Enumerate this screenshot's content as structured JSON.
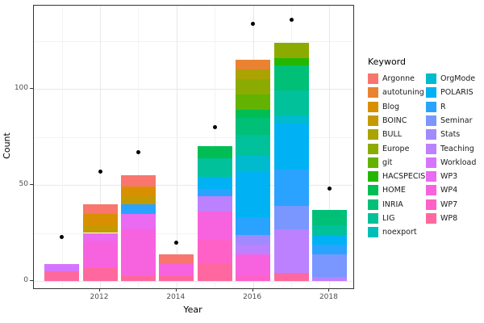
{
  "style": {
    "background": "#FFFFFF",
    "axis_color": "#333333",
    "grid_major": "#E8E8E8",
    "grid_minor": "#F3F3F3",
    "tick_label_color": "#4D4D4D",
    "point_color": "#000000"
  },
  "chart_data": {
    "type": "bar",
    "stacked": true,
    "has_point_overlay": true,
    "title": "",
    "xlabel": "Year",
    "ylabel": "Count",
    "legend_title": "Keyword",
    "legend_position": "right",
    "grid": true,
    "ylim": [
      0,
      143
    ],
    "ytick_values": [
      0,
      50,
      100
    ],
    "ytick_minor_values": [
      25,
      75,
      125
    ],
    "xtick_values": [
      2012,
      2014,
      2016,
      2018
    ],
    "years": [
      2011,
      2012,
      2013,
      2014,
      2015,
      2016,
      2017,
      2018
    ],
    "keywords": [
      {
        "label": "Argonne",
        "color": "#F8766D"
      },
      {
        "label": "autotuning",
        "color": "#EA8331"
      },
      {
        "label": "Blog",
        "color": "#D89000"
      },
      {
        "label": "BOINC",
        "color": "#C49A00"
      },
      {
        "label": "BULL",
        "color": "#ABA300"
      },
      {
        "label": "Europe",
        "color": "#8CAB00"
      },
      {
        "label": "git",
        "color": "#64B200"
      },
      {
        "label": "HACSPECIS",
        "color": "#24B700"
      },
      {
        "label": "HOME",
        "color": "#00BE53"
      },
      {
        "label": "INRIA",
        "color": "#00C078"
      },
      {
        "label": "LIG",
        "color": "#00C19A"
      },
      {
        "label": "noexport",
        "color": "#00BFB8"
      },
      {
        "label": "OrgMode",
        "color": "#00BACE"
      },
      {
        "label": "POLARIS",
        "color": "#00B2F3"
      },
      {
        "label": "R",
        "color": "#29A3FF"
      },
      {
        "label": "Seminar",
        "color": "#7997FF"
      },
      {
        "label": "Stats",
        "color": "#A18AFF"
      },
      {
        "label": "Teaching",
        "color": "#BC81FF"
      },
      {
        "label": "Workload",
        "color": "#D575FE"
      },
      {
        "label": "WP3",
        "color": "#EA6AF1"
      },
      {
        "label": "WP4",
        "color": "#F763DF"
      },
      {
        "label": "WP7",
        "color": "#FF61C7"
      },
      {
        "label": "WP8",
        "color": "#FF689E"
      }
    ],
    "bars": [
      {
        "year": 2011,
        "total": 9,
        "segments_bottom_to_top": [
          {
            "keyword": "WP8",
            "value": 5
          },
          {
            "keyword": "Workload",
            "value": 4
          }
        ]
      },
      {
        "year": 2012,
        "total": 40,
        "segments_bottom_to_top": [
          {
            "keyword": "WP8",
            "value": 7
          },
          {
            "keyword": "WP4",
            "value": 14
          },
          {
            "keyword": "WP3",
            "value": 4
          },
          {
            "keyword": "BOINC",
            "value": 4
          },
          {
            "keyword": "Blog",
            "value": 6
          },
          {
            "keyword": "Argonne",
            "value": 5
          }
        ]
      },
      {
        "year": 2013,
        "total": 55,
        "segments_bottom_to_top": [
          {
            "keyword": "WP8",
            "value": 3
          },
          {
            "keyword": "WP4",
            "value": 24
          },
          {
            "keyword": "WP3",
            "value": 8
          },
          {
            "keyword": "R",
            "value": 5
          },
          {
            "keyword": "BOINC",
            "value": 4
          },
          {
            "keyword": "Blog",
            "value": 5
          },
          {
            "keyword": "Argonne",
            "value": 6
          }
        ]
      },
      {
        "year": 2014,
        "total": 14,
        "segments_bottom_to_top": [
          {
            "keyword": "WP8",
            "value": 3
          },
          {
            "keyword": "WP4",
            "value": 6
          },
          {
            "keyword": "Argonne",
            "value": 5
          }
        ]
      },
      {
        "year": 2015,
        "total": 70,
        "segments_bottom_to_top": [
          {
            "keyword": "WP8",
            "value": 9
          },
          {
            "keyword": "WP7",
            "value": 13
          },
          {
            "keyword": "WP4",
            "value": 14
          },
          {
            "keyword": "Teaching",
            "value": 8
          },
          {
            "keyword": "R",
            "value": 4
          },
          {
            "keyword": "POLARIS",
            "value": 6
          },
          {
            "keyword": "LIG",
            "value": 10
          },
          {
            "keyword": "HOME",
            "value": 6
          }
        ]
      },
      {
        "year": 2016,
        "total": 115,
        "segments_bottom_to_top": [
          {
            "keyword": "WP7",
            "value": 3
          },
          {
            "keyword": "WP4",
            "value": 11
          },
          {
            "keyword": "Teaching",
            "value": 5
          },
          {
            "keyword": "Stats",
            "value": 5
          },
          {
            "keyword": "R",
            "value": 9
          },
          {
            "keyword": "POLARIS",
            "value": 24
          },
          {
            "keyword": "OrgMode",
            "value": 8
          },
          {
            "keyword": "LIG",
            "value": 11
          },
          {
            "keyword": "INRIA",
            "value": 9
          },
          {
            "keyword": "HOME",
            "value": 4
          },
          {
            "keyword": "git",
            "value": 8
          },
          {
            "keyword": "Europe",
            "value": 8
          },
          {
            "keyword": "BULL",
            "value": 5
          },
          {
            "keyword": "autotuning",
            "value": 5
          }
        ]
      },
      {
        "year": 2017,
        "total": 124,
        "segments_bottom_to_top": [
          {
            "keyword": "WP8",
            "value": 4
          },
          {
            "keyword": "Teaching",
            "value": 23
          },
          {
            "keyword": "Seminar",
            "value": 12
          },
          {
            "keyword": "R",
            "value": 19
          },
          {
            "keyword": "POLARIS",
            "value": 24
          },
          {
            "keyword": "OrgMode",
            "value": 4
          },
          {
            "keyword": "LIG",
            "value": 13
          },
          {
            "keyword": "INRIA",
            "value": 13
          },
          {
            "keyword": "HACSPECIS",
            "value": 4
          },
          {
            "keyword": "Europe",
            "value": 8
          }
        ]
      },
      {
        "year": 2018,
        "total": 37,
        "segments_bottom_to_top": [
          {
            "keyword": "Teaching",
            "value": 2
          },
          {
            "keyword": "Seminar",
            "value": 12
          },
          {
            "keyword": "R",
            "value": 5
          },
          {
            "keyword": "POLARIS",
            "value": 5
          },
          {
            "keyword": "LIG",
            "value": 5
          },
          {
            "keyword": "INRIA",
            "value": 8
          }
        ]
      }
    ],
    "points": [
      {
        "year": 2011,
        "value": 23
      },
      {
        "year": 2012,
        "value": 57
      },
      {
        "year": 2013,
        "value": 67
      },
      {
        "year": 2014,
        "value": 20
      },
      {
        "year": 2015,
        "value": 80
      },
      {
        "year": 2016,
        "value": 134
      },
      {
        "year": 2017,
        "value": 136
      },
      {
        "year": 2018,
        "value": 48
      }
    ]
  }
}
